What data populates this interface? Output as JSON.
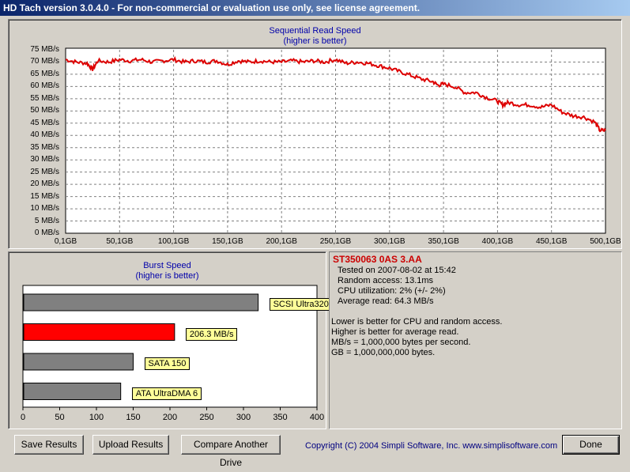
{
  "window": {
    "title": "HD Tach version 3.0.4.0  - For non-commercial or evaluation use only, see license agreement."
  },
  "read_chart": {
    "title": "Sequential Read Speed",
    "subtitle": "(higher is better)",
    "y_ticks": [
      "75 MB/s",
      "70 MB/s",
      "65 MB/s",
      "60 MB/s",
      "55 MB/s",
      "50 MB/s",
      "45 MB/s",
      "40 MB/s",
      "35 MB/s",
      "30 MB/s",
      "25 MB/s",
      "20 MB/s",
      "15 MB/s",
      "10 MB/s",
      "5 MB/s",
      "0 MB/s"
    ],
    "x_ticks": [
      "0,1GB",
      "50,1GB",
      "100,1GB",
      "150,1GB",
      "200,1GB",
      "250,1GB",
      "300,1GB",
      "350,1GB",
      "400,1GB",
      "450,1GB",
      "500,1GB"
    ],
    "line_color": "#dd0000"
  },
  "burst_chart": {
    "title": "Burst Speed",
    "subtitle": "(higher is better)",
    "x_ticks": [
      "0",
      "50",
      "100",
      "150",
      "200",
      "250",
      "300",
      "350",
      "400"
    ]
  },
  "chart_data": [
    {
      "type": "line",
      "title": "Sequential Read Speed",
      "subtitle": "(higher is better)",
      "xlabel": "",
      "ylabel": "",
      "xlim": [
        0.1,
        500.1
      ],
      "ylim": [
        0,
        75
      ],
      "grid": true,
      "series": [
        {
          "name": "",
          "x": [
            0.1,
            10,
            20,
            25,
            30,
            40,
            50,
            60,
            70,
            80,
            90,
            100,
            110,
            120,
            130,
            140,
            150,
            160,
            170,
            180,
            190,
            200,
            210,
            220,
            230,
            240,
            250,
            260,
            270,
            280,
            290,
            300,
            310,
            320,
            330,
            340,
            345,
            350,
            360,
            370,
            380,
            390,
            400,
            405,
            410,
            420,
            430,
            440,
            450,
            460,
            470,
            480,
            490,
            495,
            500.1
          ],
          "y": [
            71,
            70,
            69.5,
            67,
            70.5,
            70,
            71,
            70.5,
            71,
            70,
            70.5,
            71,
            70,
            70.5,
            70,
            70.5,
            69,
            70.5,
            70,
            70.5,
            70,
            70,
            70.5,
            70,
            70.5,
            70,
            71,
            69.5,
            70,
            69.5,
            68.5,
            67.5,
            66,
            64.5,
            63,
            62,
            60.5,
            61,
            60,
            57.5,
            57.5,
            55.5,
            54,
            52.5,
            53.5,
            52.5,
            52.5,
            51.5,
            52.5,
            49.5,
            48,
            47.5,
            45.5,
            42,
            42
          ]
        }
      ]
    },
    {
      "type": "bar",
      "title": "Burst Speed",
      "subtitle": "(higher is better)",
      "xlim": [
        0,
        400
      ],
      "categories": [
        "SCSI Ultra320",
        "206.3 MB/s",
        "SATA 150",
        "ATA UltraDMA 6"
      ],
      "values": [
        320,
        206.3,
        150,
        133
      ],
      "colors": [
        "#808080",
        "#ff0000",
        "#808080",
        "#808080"
      ]
    }
  ],
  "info": {
    "drive": "ST350063 0AS  3.AA",
    "drive_color": "#cc0000",
    "tested": "Tested on 2007-08-02 at 15:42",
    "random_access": "Random access: 13.1ms",
    "cpu": "CPU utilization: 2% (+/- 2%)",
    "average_read": "Average read: 64.3 MB/s",
    "note1": "Lower is better for CPU and random access.",
    "note2": "Higher is better for average read.",
    "note3": "MB/s = 1,000,000 bytes per second.",
    "note4": "GB = 1,000,000,000 bytes."
  },
  "buttons": {
    "save": "Save Results",
    "upload": "Upload Results",
    "compare": "Compare Another Drive",
    "done": "Done"
  },
  "footer": {
    "copyright": "Copyright (C) 2004 Simpli Software, Inc. www.simplisoftware.com"
  }
}
